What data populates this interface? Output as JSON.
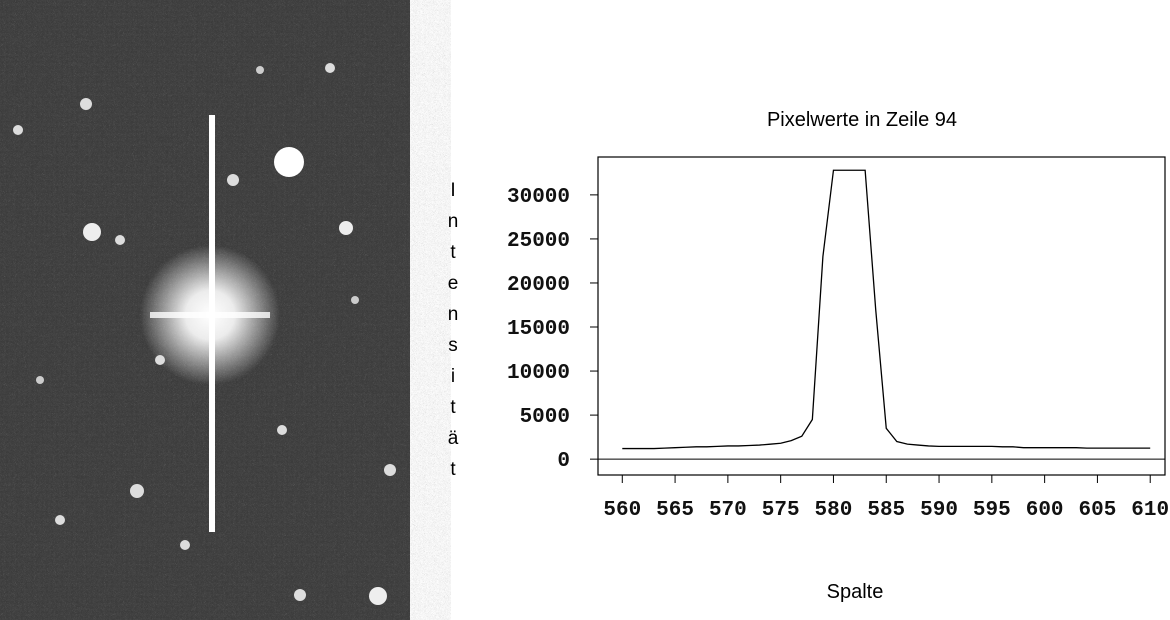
{
  "chart_data": {
    "type": "line",
    "title": "Pixelwerte in Zeile 94",
    "x_label": "Spalte",
    "y_label": "Intensität",
    "x": [
      560,
      561,
      562,
      563,
      564,
      565,
      566,
      567,
      568,
      569,
      570,
      571,
      572,
      573,
      574,
      575,
      576,
      577,
      578,
      579,
      580,
      581,
      582,
      583,
      584,
      585,
      586,
      587,
      588,
      589,
      590,
      591,
      592,
      593,
      594,
      595,
      596,
      597,
      598,
      599,
      600,
      601,
      602,
      603,
      604,
      605,
      606,
      607,
      608,
      609,
      610
    ],
    "series": [
      {
        "color": "#000000",
        "values": [
          1200,
          1200,
          1200,
          1200,
          1250,
          1300,
          1350,
          1400,
          1400,
          1450,
          1500,
          1500,
          1550,
          1600,
          1700,
          1800,
          2100,
          2600,
          4500,
          23000,
          32800,
          32800,
          32800,
          32800,
          17000,
          3500,
          2000,
          1700,
          1600,
          1500,
          1450,
          1450,
          1450,
          1450,
          1450,
          1450,
          1400,
          1400,
          1300,
          1300,
          1300,
          1300,
          1300,
          1300,
          1250,
          1250,
          1250,
          1250,
          1250,
          1250,
          1250
        ]
      }
    ],
    "xlim": [
      557.7,
      611.4
    ],
    "ylim": [
      -1800,
      34300
    ],
    "xticks": [
      560,
      565,
      570,
      575,
      580,
      585,
      590,
      595,
      600,
      605,
      610
    ],
    "yticks": [
      0,
      5000,
      10000,
      15000,
      20000,
      25000,
      30000
    ]
  }
}
